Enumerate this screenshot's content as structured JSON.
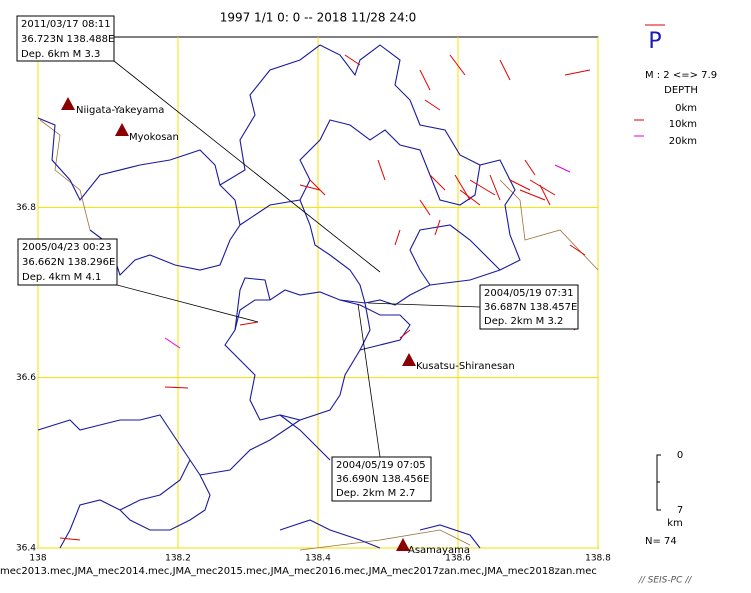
{
  "header": {
    "title": "1997 1/1 0: 0 -- 2018 11/28 24:0"
  },
  "legend": {
    "symbol": "P",
    "magnitude": "M : 2 <=> 7.9",
    "depth_title": "DEPTH",
    "depths": [
      "0km",
      "10km",
      "20km"
    ]
  },
  "map": {
    "xlim": [
      138,
      138.8
    ],
    "ylim": [
      36.4,
      37.0
    ],
    "xticks": [
      138,
      138.2,
      138.4,
      138.6,
      138.8
    ],
    "yticks": [
      36.4,
      36.6,
      36.8
    ],
    "grid": true
  },
  "annotations": [
    {
      "lines": [
        "2011/03/17 08:11",
        "36.723N  138.488E",
        "Dep. 6km   M 3.3"
      ]
    },
    {
      "lines": [
        "2005/04/23 00:23",
        "36.662N  138.296E",
        "Dep. 4km   M 4.1"
      ]
    },
    {
      "lines": [
        "2004/05/19 07:31",
        "36.687N  138.457E",
        "Dep. 2km    M 3.2"
      ]
    },
    {
      "lines": [
        "2004/05/19 07:05",
        "36.690N  138.456E",
        "Dep. 2km    M 2.7"
      ]
    }
  ],
  "volcanoes": [
    {
      "label": "Niigata-Yakeyama"
    },
    {
      "label": "Myokosan"
    },
    {
      "label": "Kusatsu-Shiranesan"
    },
    {
      "label": "Asamayama"
    }
  ],
  "scale": {
    "top": "0",
    "bottom": "7",
    "unit": "km"
  },
  "count": "N= 74",
  "footer": {
    "files": "mec2013.mec,JMA_mec2014.mec,JMA_mec2015.mec,JMA_mec2016.mec,JMA_mec2017zan.mec,JMA_mec2018zan.mec",
    "credit": "// SEIS-PC //"
  }
}
